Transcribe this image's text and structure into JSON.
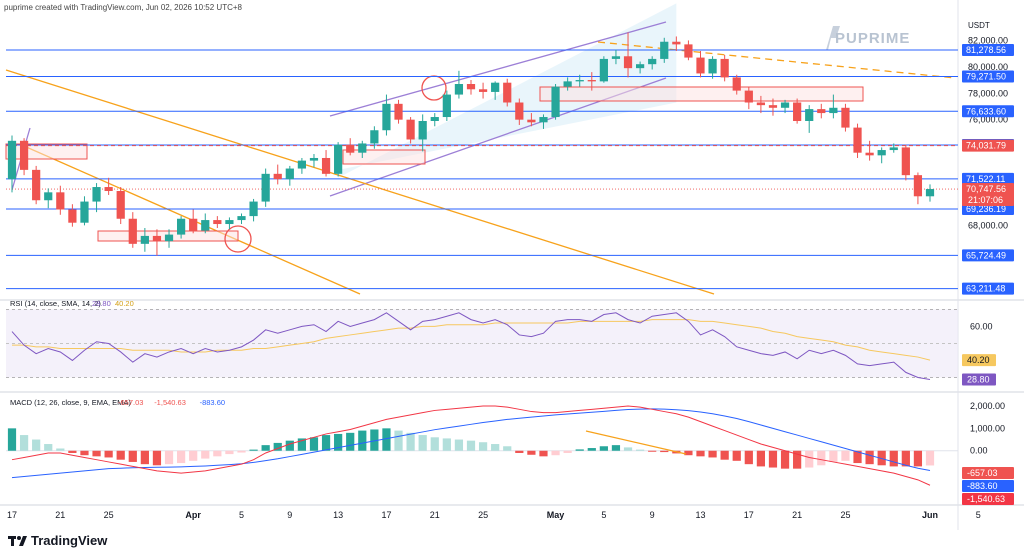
{
  "header": {
    "credit": "puprime created with TradingView.com, Jun 02, 2026 10:52 UTC+8"
  },
  "brand": {
    "name": "PUPRIME"
  },
  "footer": {
    "logo_text": "TradingView"
  },
  "colors": {
    "bull": "#26a69a",
    "bear": "#ef5350",
    "hline": "#2962ff",
    "trend": "#f7a21b",
    "channel": "#9c7fd6",
    "rsi": "#7e57c2",
    "rsi_ma": "#f6c85f",
    "macd": "#2962ff",
    "signal": "#f23645"
  },
  "chart_data": [
    {
      "type": "candlestick",
      "currency": "USDT",
      "ylim": [
        62500,
        84000
      ],
      "y_ticks": [
        {
          "label": "82,000.00",
          "value": 82000
        },
        {
          "label": "80,000.00",
          "value": 80000
        },
        {
          "label": "78,000.00",
          "value": 78000
        },
        {
          "label": "76,000.00",
          "value": 76000
        },
        {
          "label": "68,000.00",
          "value": 68000
        }
      ],
      "price_levels": [
        {
          "label": "81,278.56",
          "value": 81278.56,
          "style": "solid"
        },
        {
          "label": "79,271.50",
          "value": 79271.5,
          "style": "solid"
        },
        {
          "label": "76,633.60",
          "value": 76633.6,
          "style": "solid"
        },
        {
          "label": "74,078.24",
          "value": 74078.24,
          "style": "solid"
        },
        {
          "label": "74,031.79",
          "value": 74031.79,
          "style": "dashed-red"
        },
        {
          "label": "71,522.11",
          "value": 71522.11,
          "style": "solid"
        },
        {
          "label": "69,236.19",
          "value": 69236.19,
          "style": "solid"
        },
        {
          "label": "65,724.49",
          "value": 65724.49,
          "style": "solid"
        },
        {
          "label": "63,211.48",
          "value": 63211.48,
          "style": "solid"
        }
      ],
      "last_price": {
        "label": "70,747.56",
        "value": 70747.56,
        "countdown": "21:07:06"
      },
      "x_ticks": [
        {
          "label": "17",
          "i": 0
        },
        {
          "label": "21",
          "i": 4
        },
        {
          "label": "25",
          "i": 8
        },
        {
          "label": "Apr",
          "i": 15
        },
        {
          "label": "5",
          "i": 19
        },
        {
          "label": "9",
          "i": 23
        },
        {
          "label": "13",
          "i": 27
        },
        {
          "label": "17",
          "i": 31
        },
        {
          "label": "21",
          "i": 35
        },
        {
          "label": "25",
          "i": 39
        },
        {
          "label": "May",
          "i": 45
        },
        {
          "label": "5",
          "i": 49
        },
        {
          "label": "9",
          "i": 53
        },
        {
          "label": "13",
          "i": 57
        },
        {
          "label": "17",
          "i": 61
        },
        {
          "label": "21",
          "i": 65
        },
        {
          "label": "25",
          "i": 69
        },
        {
          "label": "Jun",
          "i": 76
        },
        {
          "label": "5",
          "i": 80
        }
      ],
      "candles": [
        [
          71500,
          74800,
          70500,
          74400
        ],
        [
          74400,
          74600,
          71800,
          72200
        ],
        [
          72200,
          72500,
          69600,
          69900
        ],
        [
          69900,
          70800,
          69300,
          70500
        ],
        [
          70500,
          71000,
          68800,
          69200
        ],
        [
          69200,
          69600,
          67900,
          68200
        ],
        [
          68200,
          70200,
          68000,
          69800
        ],
        [
          69800,
          71200,
          69000,
          70900
        ],
        [
          70900,
          71600,
          70300,
          70600
        ],
        [
          70600,
          70900,
          68100,
          68500
        ],
        [
          68500,
          69000,
          66300,
          66600
        ],
        [
          66600,
          67800,
          66000,
          67200
        ],
        [
          67200,
          67700,
          65700,
          66800
        ],
        [
          66800,
          67700,
          66300,
          67300
        ],
        [
          67300,
          68700,
          67000,
          68500
        ],
        [
          68500,
          69200,
          67400,
          67600
        ],
        [
          67600,
          68900,
          67400,
          68400
        ],
        [
          68400,
          68700,
          67800,
          68100
        ],
        [
          68100,
          68600,
          67700,
          68400
        ],
        [
          68400,
          68900,
          68100,
          68700
        ],
        [
          68700,
          70000,
          68300,
          69800
        ],
        [
          69800,
          72300,
          69400,
          71900
        ],
        [
          71900,
          72600,
          71100,
          71500
        ],
        [
          71500,
          72500,
          71000,
          72300
        ],
        [
          72300,
          73100,
          71900,
          72900
        ],
        [
          72900,
          73400,
          72400,
          73100
        ],
        [
          73100,
          73700,
          71700,
          71900
        ],
        [
          71900,
          74300,
          71700,
          74100
        ],
        [
          74100,
          74600,
          73300,
          73500
        ],
        [
          73500,
          74400,
          73100,
          74200
        ],
        [
          74200,
          75500,
          73800,
          75200
        ],
        [
          75200,
          77900,
          74800,
          77200
        ],
        [
          77200,
          77500,
          75700,
          76000
        ],
        [
          76000,
          76200,
          74200,
          74500
        ],
        [
          74500,
          76400,
          73600,
          75900
        ],
        [
          75900,
          76500,
          75500,
          76200
        ],
        [
          76200,
          78200,
          75900,
          77900
        ],
        [
          77900,
          79700,
          77600,
          78700
        ],
        [
          78700,
          79000,
          77900,
          78300
        ],
        [
          78300,
          78800,
          77600,
          78100
        ],
        [
          78100,
          78900,
          77500,
          78800
        ],
        [
          78800,
          79100,
          77000,
          77300
        ],
        [
          77300,
          77600,
          75600,
          76000
        ],
        [
          76000,
          76500,
          75500,
          75800
        ],
        [
          75800,
          76400,
          75300,
          76200
        ],
        [
          76200,
          78700,
          76000,
          78500
        ],
        [
          78500,
          79200,
          78200,
          78900
        ],
        [
          78900,
          79400,
          78500,
          79000
        ],
        [
          79000,
          79600,
          78200,
          78900
        ],
        [
          78900,
          80800,
          78800,
          80600
        ],
        [
          80600,
          81300,
          80200,
          80800
        ],
        [
          80800,
          82600,
          79200,
          79900
        ],
        [
          79900,
          80400,
          79500,
          80200
        ],
        [
          80200,
          80800,
          79800,
          80600
        ],
        [
          80600,
          82200,
          80300,
          81900
        ],
        [
          81900,
          82300,
          81200,
          81700
        ],
        [
          81700,
          82000,
          80500,
          80700
        ],
        [
          80700,
          81200,
          79200,
          79500
        ],
        [
          79500,
          80800,
          79100,
          80600
        ],
        [
          80600,
          80900,
          78900,
          79200
        ],
        [
          79200,
          79400,
          77900,
          78200
        ],
        [
          78200,
          78500,
          76800,
          77300
        ],
        [
          77300,
          77800,
          76500,
          77100
        ],
        [
          77100,
          77600,
          76300,
          76900
        ],
        [
          76900,
          77500,
          76500,
          77300
        ],
        [
          77300,
          77600,
          75700,
          75900
        ],
        [
          75900,
          77100,
          75000,
          76800
        ],
        [
          76800,
          77200,
          76100,
          76500
        ],
        [
          76500,
          77900,
          76100,
          76900
        ],
        [
          76900,
          77200,
          75100,
          75400
        ],
        [
          75400,
          75700,
          73100,
          73500
        ],
        [
          73500,
          74400,
          72900,
          73300
        ],
        [
          73300,
          73900,
          72700,
          73700
        ],
        [
          73700,
          74200,
          73500,
          73900
        ],
        [
          73900,
          74100,
          71400,
          71800
        ],
        [
          71800,
          72000,
          69600,
          70200
        ],
        [
          70200,
          71100,
          69800,
          70750
        ]
      ]
    },
    {
      "type": "line",
      "indicator": "RSI",
      "legend": "RSI (14, close, SMA, 14, 2)",
      "legend_value": "28.80",
      "legend_ma_value": "40.20",
      "ylim": [
        25,
        72
      ],
      "y_ticks": [
        {
          "label": "60.00",
          "value": 60
        }
      ],
      "value_labels": [
        {
          "label": "40.20",
          "value": 40.2,
          "series": "ma"
        },
        {
          "label": "28.80",
          "value": 28.8,
          "series": "rsi"
        }
      ],
      "rsi": [
        57,
        49,
        44,
        47,
        45,
        40,
        46,
        51,
        50,
        45,
        39,
        44,
        42,
        45,
        47,
        44,
        47,
        45,
        46,
        48,
        52,
        58,
        56,
        58,
        60,
        61,
        57,
        63,
        60,
        62,
        64,
        68,
        63,
        58,
        63,
        64,
        66,
        68,
        64,
        62,
        64,
        61,
        55,
        54,
        56,
        63,
        64,
        64,
        63,
        67,
        68,
        64,
        62,
        66,
        67,
        68,
        63,
        55,
        58,
        54,
        48,
        46,
        44,
        43,
        45,
        41,
        46,
        44,
        46,
        43,
        38,
        37,
        38,
        39,
        33,
        30,
        28.8
      ],
      "rsi_ma": [
        49,
        49,
        48,
        48,
        47,
        47,
        47,
        47,
        47,
        47,
        46,
        46,
        46,
        46,
        45,
        45,
        45,
        46,
        46,
        46,
        47,
        47,
        48,
        49,
        50,
        51,
        53,
        54,
        55,
        56,
        57,
        58,
        59,
        59,
        60,
        60,
        61,
        61,
        61,
        61,
        62,
        62,
        62,
        62,
        62,
        62,
        62,
        63,
        63,
        63,
        63,
        63,
        63,
        64,
        64,
        64,
        64,
        63,
        63,
        62,
        61,
        60,
        59,
        57,
        56,
        54,
        53,
        52,
        51,
        49,
        48,
        46,
        45,
        44,
        43,
        42,
        40.2
      ]
    },
    {
      "type": "bar",
      "indicator": "MACD",
      "legend": "MACD (12, 26, close, 9, EMA, EMA)",
      "legend_values": [
        "-657.03",
        "-1,540.63",
        "-883.60"
      ],
      "ylim": [
        -2200,
        2400
      ],
      "y_ticks": [
        {
          "label": "2,000.00",
          "value": 2000
        },
        {
          "label": "1,000.00",
          "value": 1000
        },
        {
          "label": "0.00",
          "value": 0
        }
      ],
      "value_labels": [
        {
          "label": "-657.03",
          "value": -657.03,
          "series": "histogram"
        },
        {
          "label": "-883.60",
          "value": -883.6,
          "series": "signal"
        },
        {
          "label": "-1,540.63",
          "value": -1540.63,
          "series": "macd"
        }
      ],
      "histogram": [
        1000,
        700,
        500,
        300,
        100,
        -100,
        -200,
        -250,
        -300,
        -400,
        -500,
        -600,
        -650,
        -600,
        -550,
        -450,
        -350,
        -250,
        -150,
        -80,
        50,
        250,
        350,
        450,
        550,
        600,
        700,
        750,
        800,
        900,
        950,
        1000,
        900,
        800,
        700,
        600,
        550,
        500,
        450,
        380,
        300,
        200,
        -100,
        -180,
        -250,
        -200,
        -100,
        60,
        120,
        200,
        250,
        150,
        50,
        -30,
        -60,
        -120,
        -200,
        -250,
        -300,
        -400,
        -450,
        -600,
        -700,
        -750,
        -800,
        -800,
        -750,
        -650,
        -500,
        -450,
        -550,
        -600,
        -650,
        -700,
        -700,
        -700,
        -657.03
      ],
      "macd": [
        -400,
        -300,
        -200,
        -100,
        -100,
        -200,
        -300,
        -400,
        -500,
        -600,
        -700,
        -800,
        -900,
        -950,
        -1000,
        -950,
        -900,
        -800,
        -700,
        -600,
        -400,
        -100,
        100,
        300,
        450,
        600,
        750,
        850,
        950,
        1100,
        1250,
        1400,
        1500,
        1600,
        1700,
        1800,
        1850,
        1900,
        1950,
        2000,
        2000,
        1950,
        1850,
        1750,
        1700,
        1700,
        1750,
        1800,
        1850,
        1900,
        1950,
        2000,
        1950,
        1850,
        1750,
        1650,
        1500,
        1300,
        1100,
        900,
        700,
        500,
        300,
        150,
        0,
        -150,
        -300,
        -400,
        -500,
        -600,
        -700,
        -800,
        -900,
        -1000,
        -1150,
        -1300,
        -1540.63
      ],
      "signal": [
        -1200,
        -1150,
        -1100,
        -1050,
        -1000,
        -950,
        -900,
        -850,
        -800,
        -780,
        -760,
        -750,
        -740,
        -730,
        -720,
        -700,
        -680,
        -650,
        -620,
        -580,
        -520,
        -440,
        -360,
        -260,
        -160,
        -60,
        40,
        140,
        240,
        340,
        440,
        540,
        640,
        740,
        840,
        940,
        1020,
        1100,
        1180,
        1260,
        1330,
        1400,
        1450,
        1500,
        1550,
        1600,
        1640,
        1680,
        1720,
        1760,
        1800,
        1840,
        1860,
        1870,
        1860,
        1830,
        1790,
        1730,
        1650,
        1550,
        1440,
        1300,
        1150,
        1000,
        850,
        700,
        550,
        400,
        250,
        100,
        -50,
        -200,
        -350,
        -500,
        -650,
        -780,
        -883.6
      ]
    }
  ]
}
